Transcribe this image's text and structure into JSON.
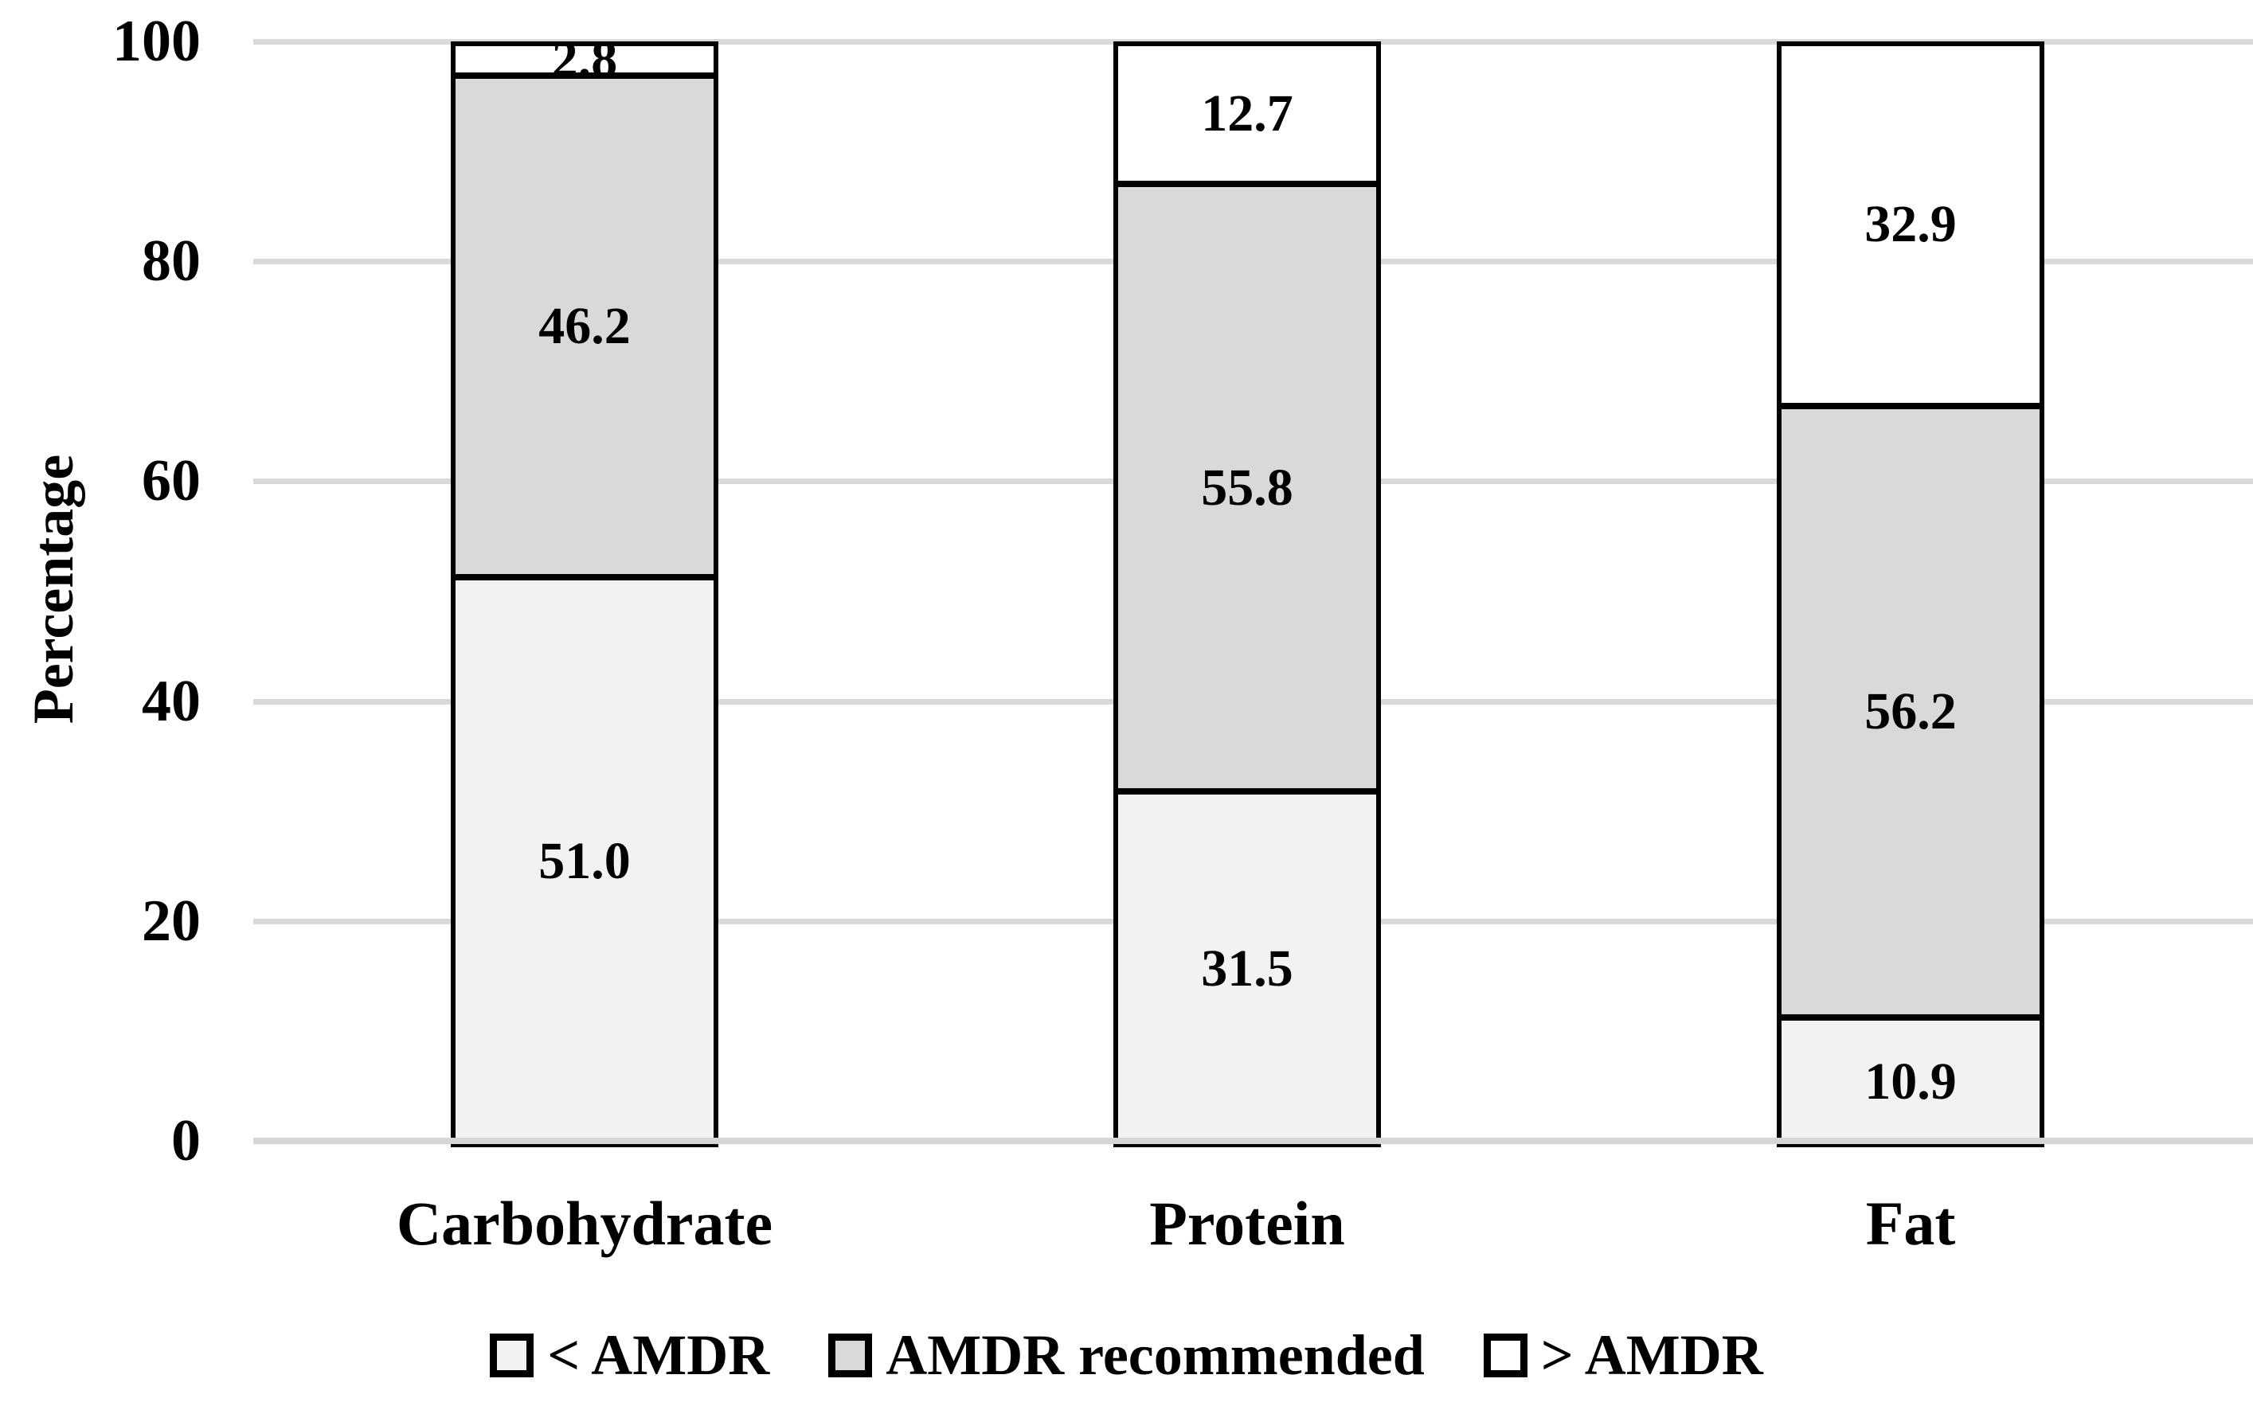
{
  "figure": {
    "background": "#ffffff"
  },
  "chart_data": {
    "type": "bar",
    "stacked": true,
    "orientation": "vertical",
    "title": "",
    "categories": [
      "Carbohydrate",
      "Protein",
      "Fat"
    ],
    "series": [
      {
        "name": "< AMDR",
        "color": "#f2f2f2",
        "values": [
          51.0,
          31.5,
          10.9
        ],
        "labels": [
          "51.0",
          "31.5",
          "10.9"
        ]
      },
      {
        "name": "AMDR recommended",
        "color": "#d9d9d9",
        "values": [
          46.2,
          55.8,
          56.2
        ],
        "labels": [
          "46.2",
          "55.8",
          "56.2"
        ]
      },
      {
        "name": "> AMDR",
        "color": "#ffffff",
        "values": [
          2.8,
          12.7,
          32.9
        ],
        "labels": [
          "2.8",
          "12.7",
          "32.9"
        ]
      }
    ],
    "xlabel": "",
    "ylabel": "Percentage",
    "ylim": [
      0,
      100
    ],
    "yticks": [
      0,
      20,
      40,
      60,
      80,
      100
    ],
    "grid": true,
    "gridline_color": "#d9d9d9",
    "axis_line_color": "#d6d6d6",
    "bar_border_color": "#000000",
    "label_text_color": "#000000",
    "legend_position": "bottom"
  }
}
